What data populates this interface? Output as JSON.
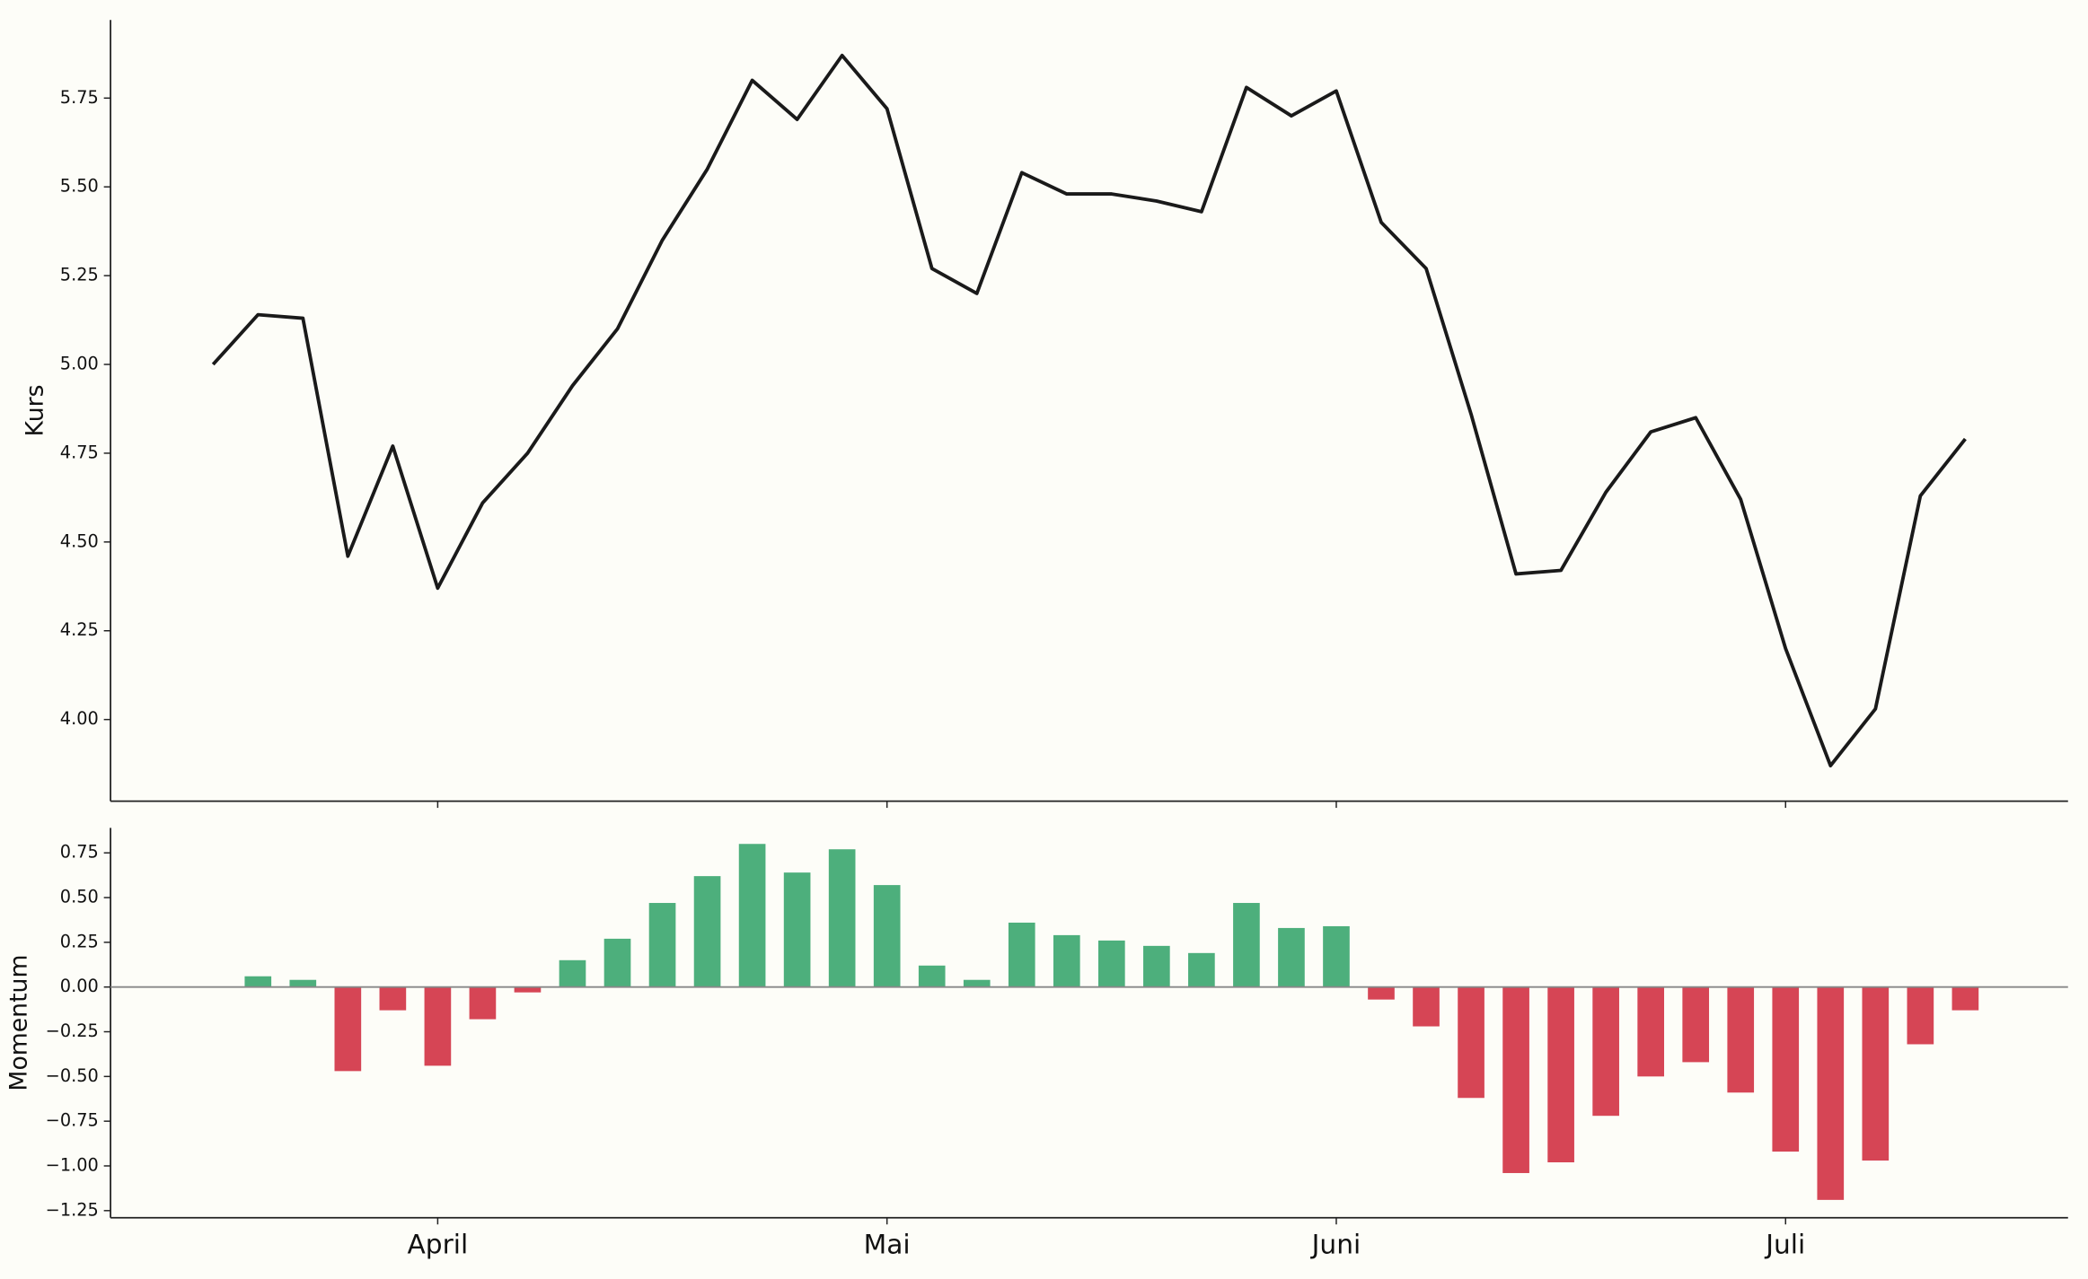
{
  "chart_data": [
    {
      "type": "line",
      "ylabel": "Kurs",
      "color": "#1a1a1a",
      "values": [
        5.0,
        5.14,
        5.13,
        4.46,
        4.77,
        4.37,
        4.61,
        4.75,
        4.94,
        5.1,
        5.35,
        5.55,
        5.8,
        5.69,
        5.87,
        5.72,
        5.27,
        5.2,
        5.54,
        5.48,
        5.48,
        5.46,
        5.43,
        5.78,
        5.7,
        5.77,
        5.4,
        5.27,
        4.86,
        4.41,
        4.42,
        4.64,
        4.81,
        4.85,
        4.62,
        4.2,
        3.87,
        4.03,
        4.63,
        4.79
      ],
      "ylim": [
        3.77,
        5.97
      ],
      "yticks": [
        {
          "value": 4,
          "label": "4.00"
        },
        4.25,
        {
          "value": 4.5,
          "label": "4.50"
        },
        4.75,
        {
          "value": 5,
          "label": "5.00"
        },
        5.25,
        {
          "value": 5.5,
          "label": "5.50"
        },
        5.75
      ]
    },
    {
      "type": "bar",
      "ylabel": "Momentum",
      "positive_color": "#4daf7c",
      "negative_color": "#d64555",
      "categories": [
        null,
        null,
        null,
        null,
        null,
        "April",
        null,
        null,
        null,
        null,
        null,
        null,
        null,
        null,
        null,
        "Mai",
        null,
        null,
        null,
        null,
        null,
        null,
        null,
        null,
        null,
        "Juni",
        null,
        null,
        null,
        null,
        null,
        null,
        null,
        null,
        null,
        "Juli",
        null,
        null,
        null,
        null
      ],
      "values": [
        null,
        0.06,
        0.04,
        -0.47,
        -0.13,
        -0.44,
        -0.18,
        -0.03,
        0.15,
        0.27,
        0.47,
        0.62,
        0.8,
        0.64,
        0.77,
        0.57,
        0.12,
        0.04,
        0.36,
        0.29,
        0.26,
        0.23,
        0.19,
        0.47,
        0.33,
        0.34,
        -0.07,
        -0.22,
        -0.62,
        -1.04,
        -0.98,
        -0.72,
        -0.5,
        -0.42,
        -0.59,
        -0.92,
        -1.19,
        -0.97,
        -0.32,
        -0.13
      ],
      "ylim": [
        -1.29,
        0.89
      ],
      "yticks": [
        {
          "value": -1.25,
          "label": "−1.25"
        },
        {
          "value": -1,
          "label": "−1.00"
        },
        {
          "value": -0.75,
          "label": "−0.75"
        },
        {
          "value": -0.5,
          "label": "−0.50"
        },
        {
          "value": -0.25,
          "label": "−0.25"
        },
        {
          "value": 0,
          "label": "0.00"
        },
        0.25,
        {
          "value": 0.5,
          "label": "0.50"
        },
        0.75
      ]
    }
  ]
}
